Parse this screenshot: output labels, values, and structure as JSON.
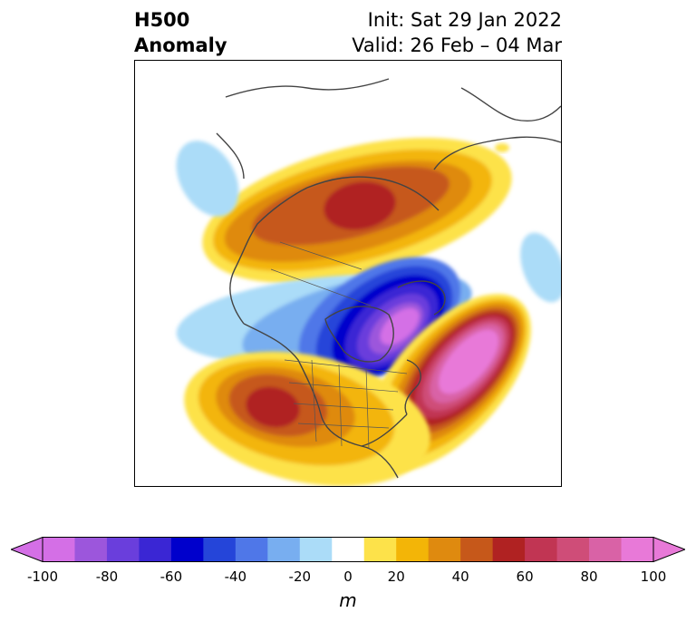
{
  "header": {
    "left_title_line1": "H500",
    "left_title_line2": "Anomaly",
    "right_title_line1": "Init: Sat 29 Jan 2022",
    "right_title_line2": "Valid: 26 Feb – 04 Mar"
  },
  "map": {
    "projection": "north-polar-stereographic",
    "field": "500 hPa geopotential height anomaly",
    "features": [
      {
        "name": "ridge over Alaska / Bering",
        "sign": "positive",
        "peak_m": 55
      },
      {
        "name": "trough over Hudson Bay / eastern Canada",
        "sign": "negative",
        "peak_m": -100
      },
      {
        "name": "ridge over western Atlantic",
        "sign": "positive",
        "peak_m": 100
      },
      {
        "name": "ridge over southwestern US",
        "sign": "positive",
        "peak_m": 60
      }
    ]
  },
  "colorbar": {
    "unit": "m",
    "levels": [
      -100,
      -90,
      -80,
      -70,
      -60,
      -50,
      -40,
      -30,
      -20,
      -10,
      10,
      20,
      30,
      40,
      50,
      60,
      70,
      80,
      90,
      100
    ],
    "colors": [
      "#d46fe6",
      "#9c56dc",
      "#6a3edc",
      "#3a26d4",
      "#0000cc",
      "#2545d9",
      "#4f77e8",
      "#78aef0",
      "#abdcf8",
      "#ffffff",
      "#fde24a",
      "#f3b507",
      "#df8a0f",
      "#c6581a",
      "#b02222",
      "#c13553",
      "#cf4d78",
      "#d962a6",
      "#e879d8"
    ],
    "under_color": "#d46fe6",
    "over_color": "#e879d8",
    "tick_labels": [
      "-100",
      "-80",
      "-60",
      "-40",
      "-20",
      "0",
      "20",
      "40",
      "60",
      "80",
      "100"
    ]
  }
}
